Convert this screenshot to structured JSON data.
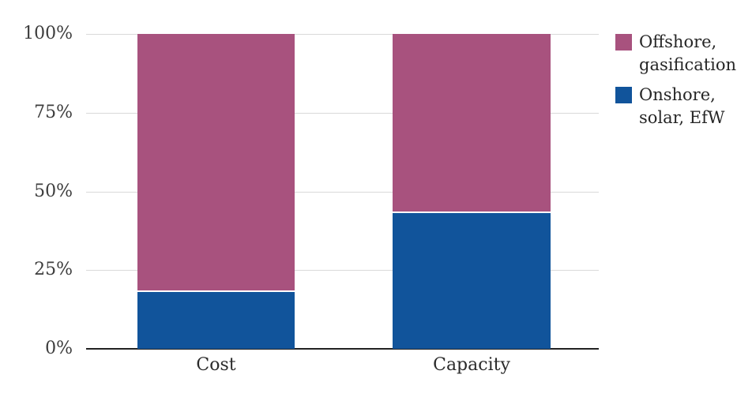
{
  "chart_data": {
    "type": "bar",
    "stacked": true,
    "orientation": "vertical",
    "categories": [
      "Cost",
      "Capacity"
    ],
    "series": [
      {
        "name": "Onshore, solar, EfW",
        "values": [
          18,
          43
        ],
        "color": "#11549b",
        "position": "bottom"
      },
      {
        "name": "Offshore, gasification",
        "values": [
          82,
          57
        ],
        "color": "#a8527e",
        "position": "top"
      }
    ],
    "title": "",
    "xlabel": "",
    "ylabel": "",
    "ylim": [
      0,
      100
    ],
    "yticks": [
      0,
      25,
      50,
      75,
      100
    ],
    "ytick_labels": [
      "0%",
      "25%",
      "50%",
      "75%",
      "100%"
    ],
    "grid": true,
    "legend_position": "right"
  },
  "legend": {
    "items": [
      {
        "label": "Offshore, gasification",
        "label_lines": [
          "Offshore,",
          "gasification"
        ],
        "color": "#a8527e"
      },
      {
        "label": "Onshore, solar, EfW",
        "label_lines": [
          "Onshore,",
          "solar, EfW"
        ],
        "color": "#11549b"
      }
    ]
  },
  "axes": {
    "y_tick_labels": [
      "0%",
      "25%",
      "50%",
      "75%",
      "100%"
    ],
    "x_tick_labels": [
      "Cost",
      "Capacity"
    ]
  },
  "colors": {
    "offshore_gasification": "#a8527e",
    "onshore_solar_efw": "#11549b",
    "gridline": "#d9d9d9",
    "axis_line": "#222222",
    "tick_text": "#3d3d3d",
    "legend_text": "#262626",
    "background": "#ffffff",
    "segment_gap": "#ffffff"
  }
}
